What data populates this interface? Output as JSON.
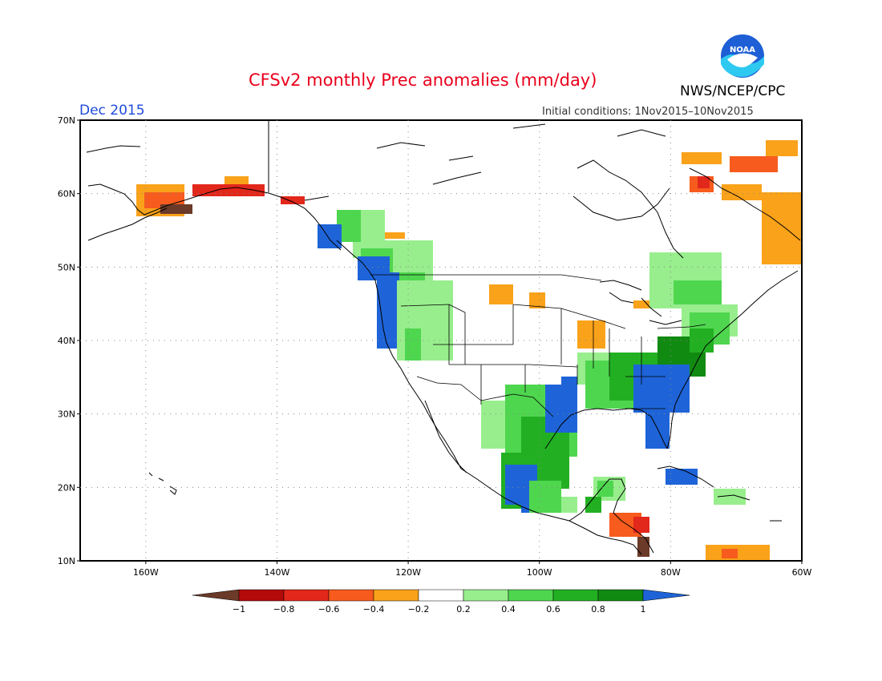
{
  "header": {
    "title": "CFSv2 monthly Prec anomalies (mm/day)",
    "period": "Dec 2015",
    "source": "NWS/NCEP/CPC",
    "initial_conditions": "Initial conditions: 1Nov2015–10Nov2015",
    "logo_text": "NOAA"
  },
  "map": {
    "lat_labels": [
      "70N",
      "60N",
      "50N",
      "40N",
      "30N",
      "20N",
      "10N"
    ],
    "lon_labels": [
      "160W",
      "140W",
      "120W",
      "100W",
      "80W",
      "60W"
    ]
  },
  "colorbar": {
    "tick_labels": [
      "−1",
      "−0.8",
      "−0.6",
      "−0.4",
      "−0.2",
      "0.2",
      "0.4",
      "0.6",
      "0.8",
      "1"
    ],
    "colors": {
      "below_-1": "#6b3a28",
      "-1_to_-0.8": "#b40a0a",
      "-0.8_to_-0.6": "#e2271b",
      "-0.6_to_-0.4": "#f75b1e",
      "-0.4_to_-0.2": "#f9a21a",
      "-0.2_to_0.2": "#ffffff",
      "0.2_to_0.4": "#98ee8d",
      "0.4_to_0.6": "#4fd64f",
      "0.6_to_0.8": "#22b022",
      "0.8_to_1": "#118a11",
      "above_1": "#1e64d8"
    }
  }
}
